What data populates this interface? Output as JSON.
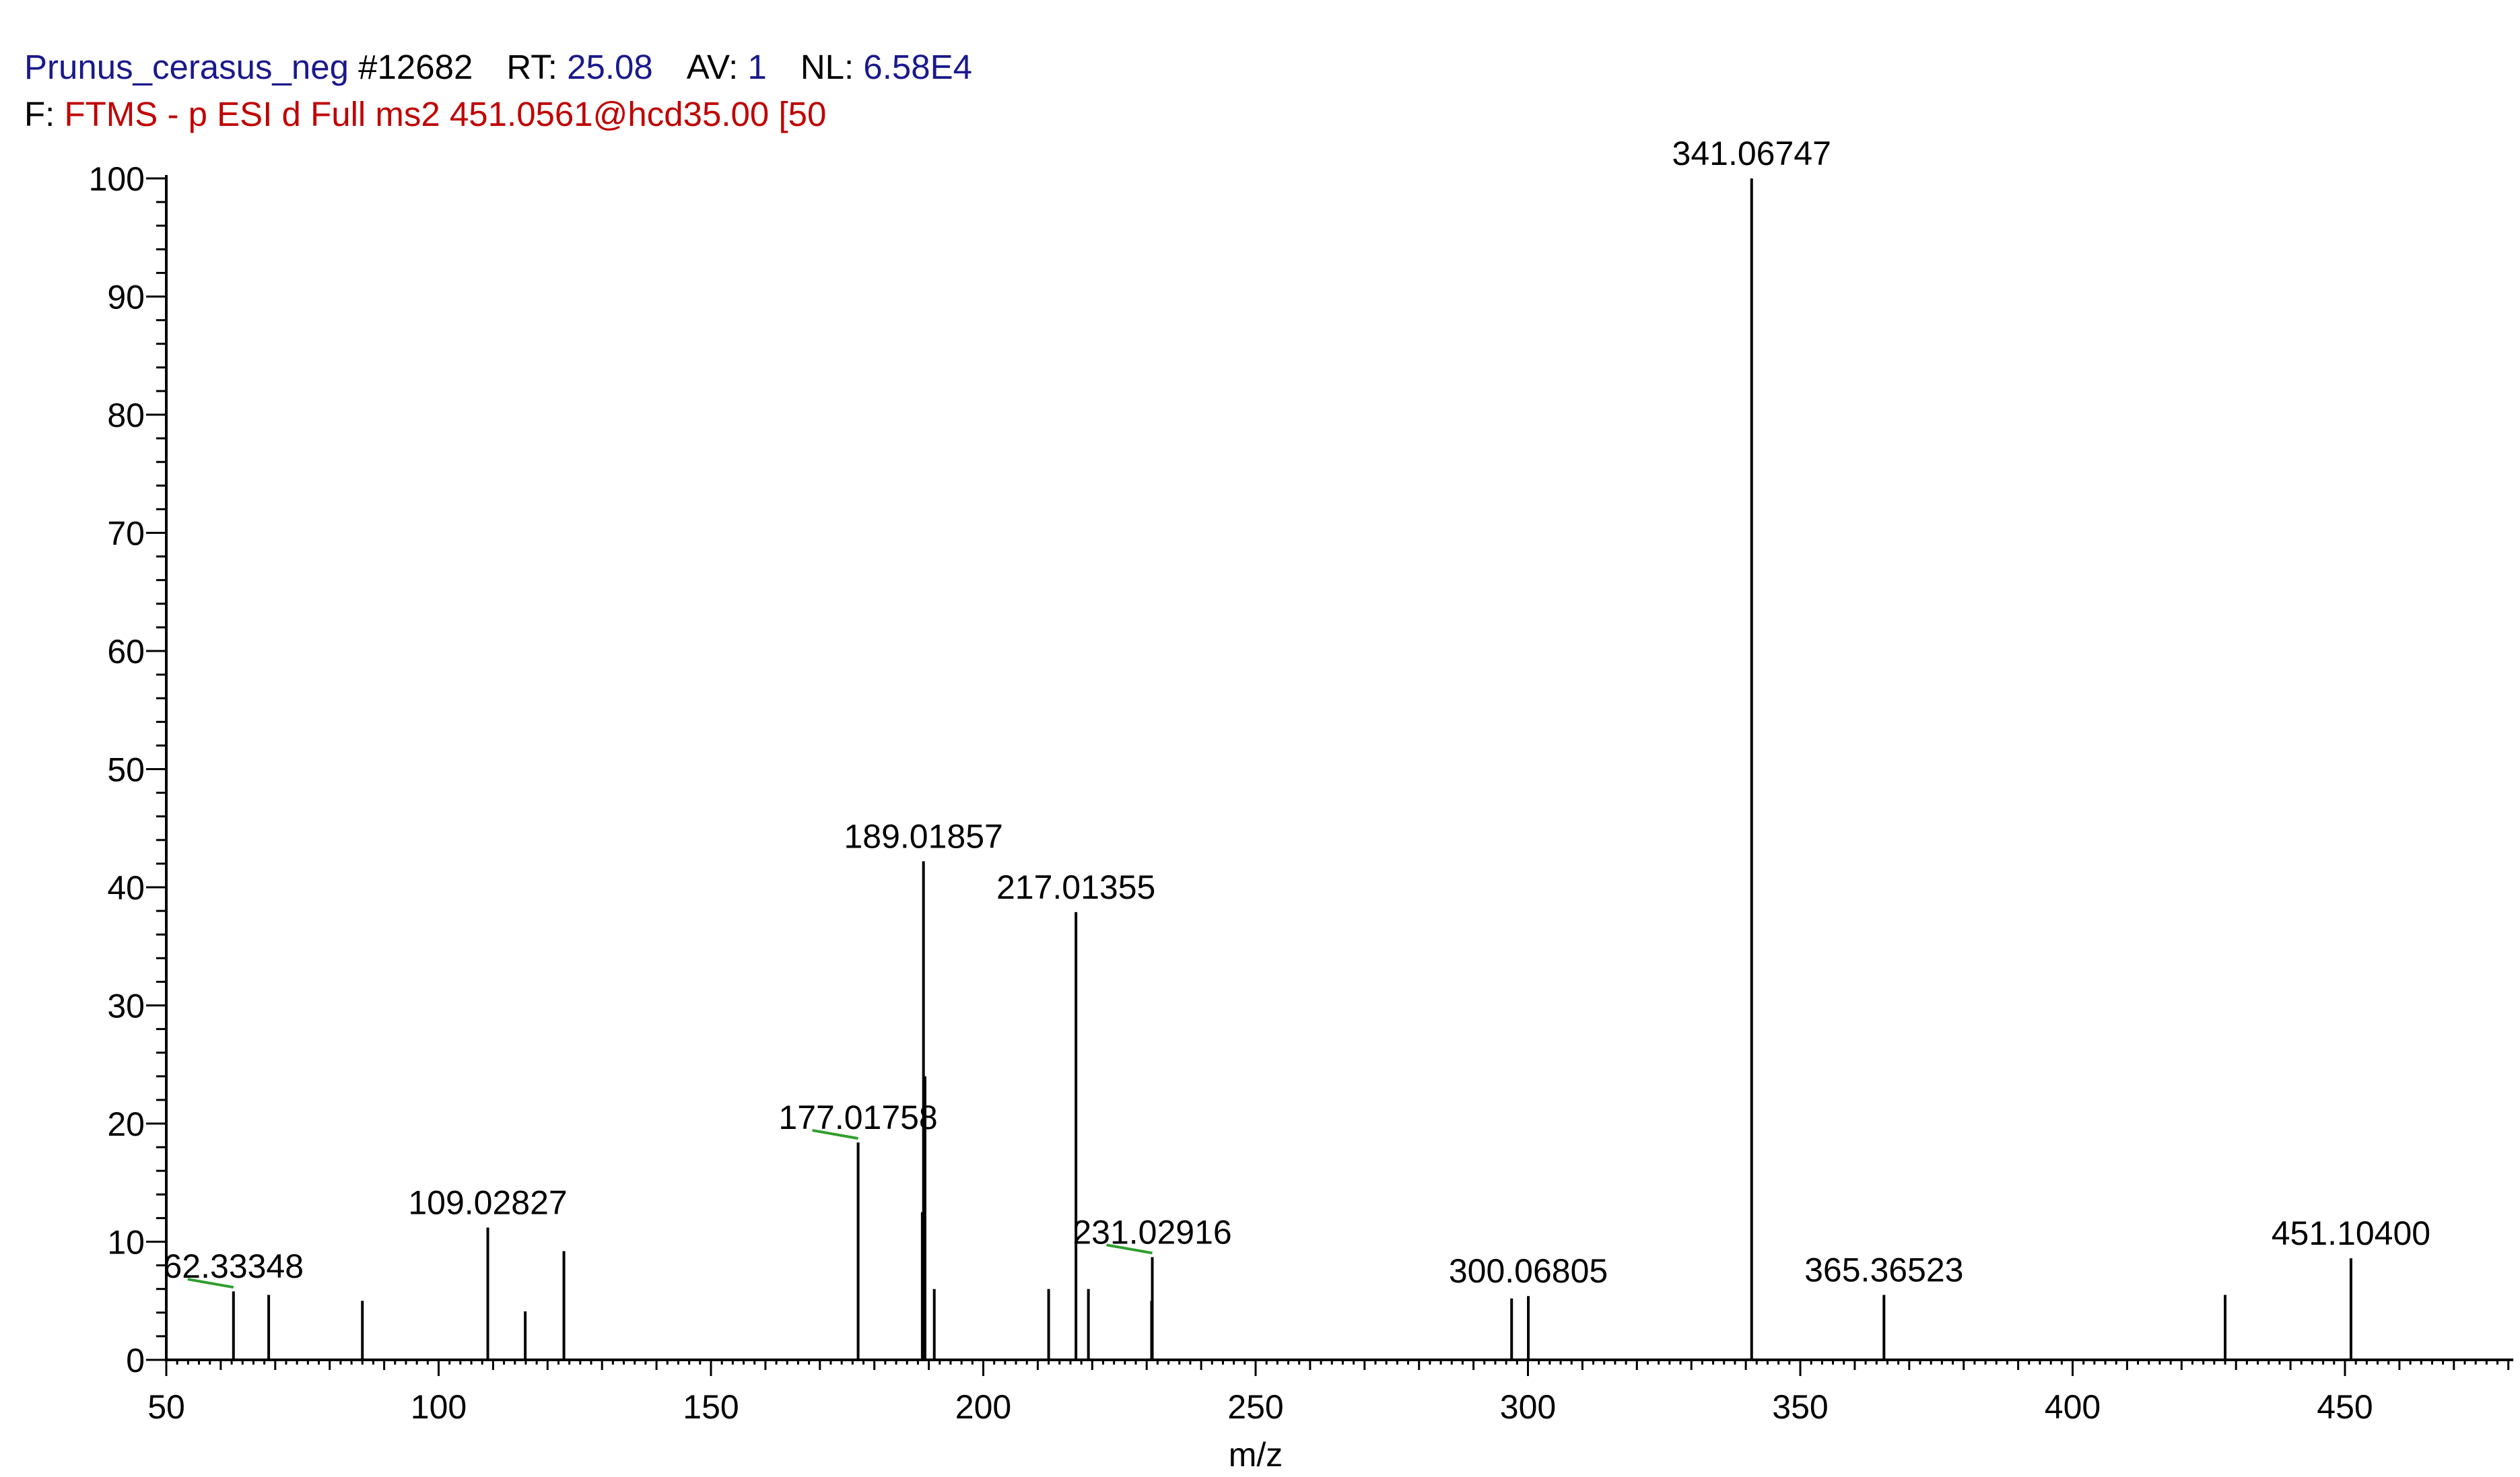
{
  "header": {
    "file_label": "Prunus_cerasus_neg",
    "scan": "#12682",
    "rt_label": "RT:",
    "rt_value": "25.08",
    "av_label": "AV:",
    "av_value": "1",
    "nl_label": "NL:",
    "nl_value": "6.58E4",
    "filter_label": "F:",
    "filter_text": "FTMS - p ESI d Full ms2 451.0561@hcd35.00 [50"
  },
  "chart_data": {
    "type": "bar",
    "xlabel": "m/z",
    "ylabel": "",
    "xlim": [
      50,
      480
    ],
    "ylim": [
      0,
      100
    ],
    "x_ticks": [
      50,
      100,
      150,
      200,
      250,
      300,
      350,
      400,
      450
    ],
    "y_ticks": [
      0,
      10,
      20,
      30,
      40,
      50,
      60,
      70,
      80,
      90,
      100
    ],
    "colors": {
      "peak": "#000000",
      "label_marker": "#2e9e2e",
      "title_navy": "#1a1a8c",
      "title_red": "#c00000"
    },
    "peaks": [
      {
        "mz": 62.33348,
        "intensity": 5.8,
        "label": "62.33348",
        "marker": true
      },
      {
        "mz": 68.8,
        "intensity": 5.5
      },
      {
        "mz": 86.0,
        "intensity": 5.0
      },
      {
        "mz": 109.02827,
        "intensity": 11.2,
        "label": "109.02827"
      },
      {
        "mz": 115.9,
        "intensity": 4.1
      },
      {
        "mz": 123.0,
        "intensity": 9.2
      },
      {
        "mz": 177.01758,
        "intensity": 18.4,
        "label": "177.01758",
        "marker": true
      },
      {
        "mz": 188.8,
        "intensity": 12.5
      },
      {
        "mz": 189.01857,
        "intensity": 42.2,
        "label": "189.01857"
      },
      {
        "mz": 189.3,
        "intensity": 24.0
      },
      {
        "mz": 191.0,
        "intensity": 6.0
      },
      {
        "mz": 212.0,
        "intensity": 6.0
      },
      {
        "mz": 217.01355,
        "intensity": 37.9,
        "label": "217.01355"
      },
      {
        "mz": 219.3,
        "intensity": 6.0
      },
      {
        "mz": 230.9,
        "intensity": 5.0
      },
      {
        "mz": 231.02916,
        "intensity": 8.7,
        "label": "231.02916",
        "marker": true
      },
      {
        "mz": 297.0,
        "intensity": 5.2
      },
      {
        "mz": 300.06805,
        "intensity": 5.4,
        "label": "300.06805"
      },
      {
        "mz": 341.06747,
        "intensity": 100,
        "label": "341.06747"
      },
      {
        "mz": 365.36523,
        "intensity": 5.5,
        "label": "365.36523"
      },
      {
        "mz": 428.0,
        "intensity": 5.5
      },
      {
        "mz": 451.104,
        "intensity": 8.6,
        "label": "451.10400"
      }
    ]
  }
}
